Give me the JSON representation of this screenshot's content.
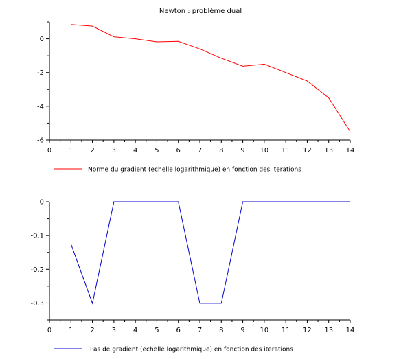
{
  "chart_data": [
    {
      "type": "line",
      "title": "Newton : problème dual",
      "xlim": [
        0,
        14
      ],
      "ylim": [
        -6,
        1
      ],
      "x_ticks": [
        0,
        1,
        2,
        3,
        4,
        5,
        6,
        7,
        8,
        9,
        10,
        11,
        12,
        13,
        14
      ],
      "y_ticks": [
        -6,
        -4,
        -2,
        0
      ],
      "grid": false,
      "legend_position": "bottom-left",
      "series": [
        {
          "name": "Norme du gradient (echelle logarithmique) en fonction des iterations",
          "color": "#ff0000",
          "x": [
            1,
            2,
            3,
            4,
            5,
            6,
            7,
            8,
            9,
            10,
            11,
            12,
            13,
            14
          ],
          "y": [
            0.85,
            0.75,
            0.12,
            0.0,
            -0.18,
            -0.15,
            -0.6,
            -1.15,
            -1.62,
            -1.5,
            -2.0,
            -2.5,
            -3.5,
            -5.5
          ]
        }
      ]
    },
    {
      "type": "line",
      "title": "",
      "xlim": [
        0,
        14
      ],
      "ylim": [
        -0.35,
        0
      ],
      "x_ticks": [
        0,
        1,
        2,
        3,
        4,
        5,
        6,
        7,
        8,
        9,
        10,
        11,
        12,
        13,
        14
      ],
      "y_ticks": [
        -0.3,
        -0.2,
        -0.1,
        0
      ],
      "grid": false,
      "legend_position": "bottom-left",
      "series": [
        {
          "name": "Pas de gradient (echelle logarithmique) en fonction des iterations",
          "color": "#0000cc",
          "x": [
            1,
            2,
            3,
            4,
            5,
            6,
            7,
            8,
            9,
            10,
            11,
            12,
            13,
            14
          ],
          "y": [
            -0.125,
            -0.301,
            0,
            0,
            0,
            0,
            -0.301,
            -0.301,
            0,
            0,
            0,
            0,
            0,
            0
          ]
        }
      ]
    }
  ]
}
